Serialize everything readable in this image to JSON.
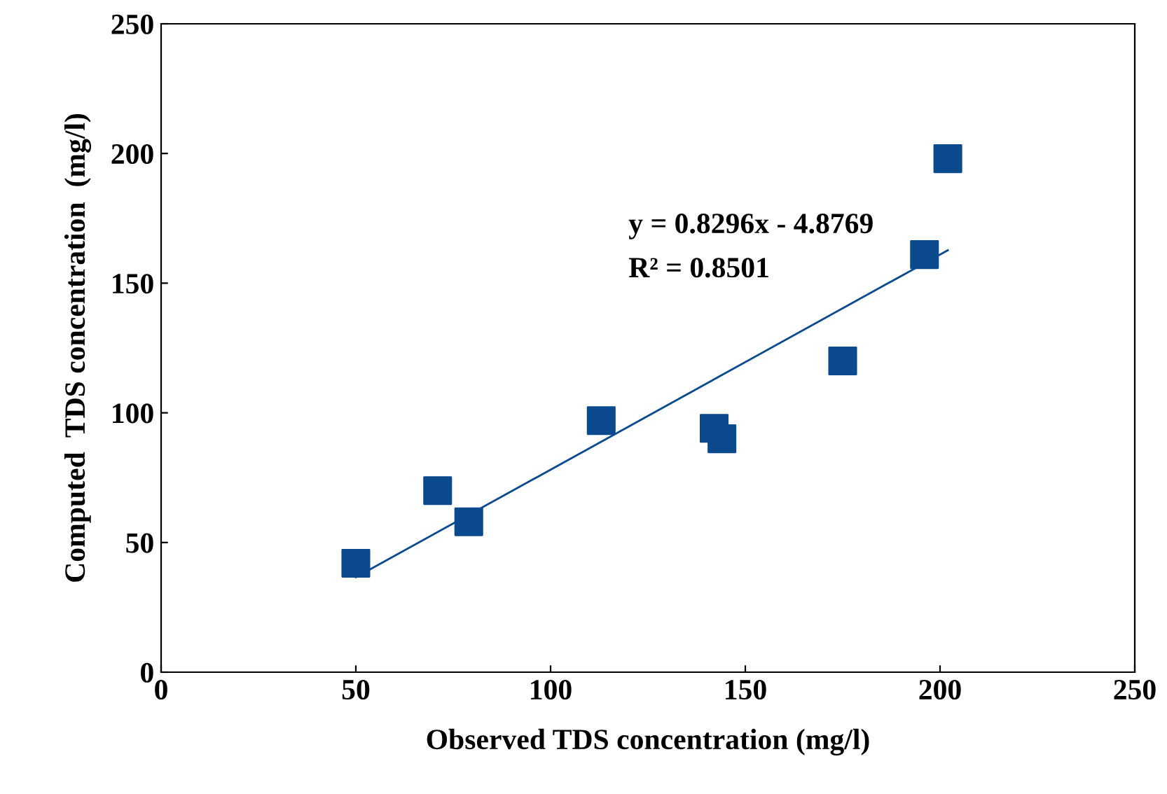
{
  "chart_data": {
    "type": "scatter",
    "xlabel": "Observed TDS concentration (mg/l)",
    "ylabel": "Computed  TDS concentration  (mg/l)",
    "xlim": [
      0,
      250
    ],
    "ylim": [
      0,
      250
    ],
    "xticks": [
      0,
      50,
      100,
      150,
      200,
      250
    ],
    "yticks": [
      0,
      50,
      100,
      150,
      200,
      250
    ],
    "grid": false,
    "legend": false,
    "series": [
      {
        "marker": "square",
        "color": "#0b4a8c",
        "x": [
          50,
          71,
          79,
          113,
          142,
          144,
          175,
          196,
          202
        ],
        "values": [
          42,
          70,
          58,
          97,
          94,
          90,
          120,
          161,
          198
        ]
      },
      {
        "type": "line",
        "marker": "none",
        "color": "#0b4a8c",
        "x": [
          50,
          202
        ],
        "values": [
          36.6,
          162.7
        ]
      }
    ],
    "annotations": [
      "y = 0.8296x - 4.8769",
      "R² = 0.8501"
    ]
  }
}
